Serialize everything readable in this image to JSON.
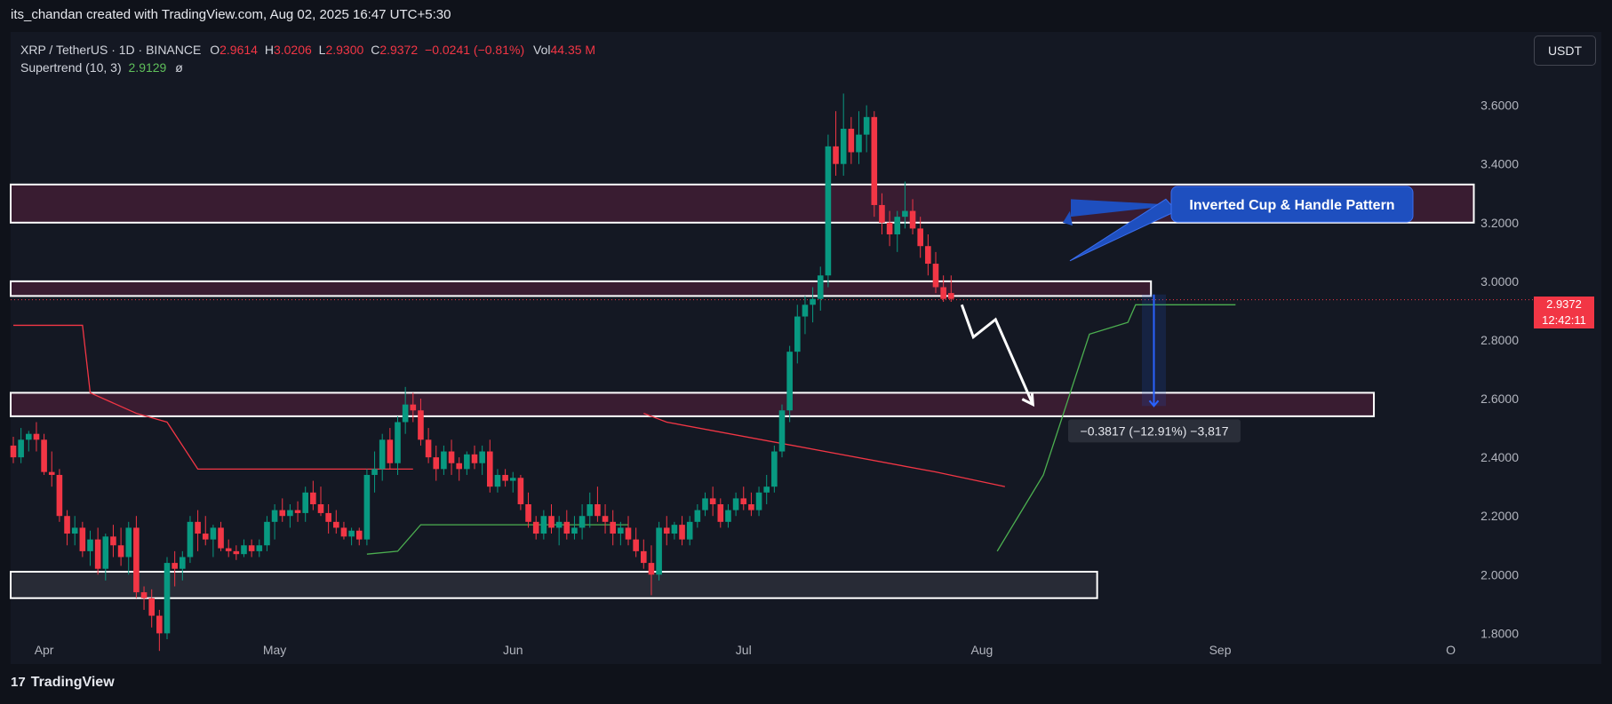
{
  "banner": "its_chandan created with TradingView.com, Aug 02, 2025 16:47 UTC+5:30",
  "legend": {
    "symbol": "XRP / TetherUS · 1D · BINANCE",
    "o_label": "O",
    "o": "2.9614",
    "h_label": "H",
    "h": "3.0206",
    "l_label": "L",
    "l": "2.9300",
    "c_label": "C",
    "c": "2.9372",
    "change": "−0.0241 (−0.81%)",
    "vol_label": "Vol",
    "vol": "44.35 M",
    "indicator": "Supertrend (10, 3)",
    "indicator_value": "2.9129",
    "indicator_icon": "ø"
  },
  "currency_button": "USDT",
  "price_tag": {
    "price": "2.9372",
    "countdown": "12:42:11"
  },
  "footer_brand": "TradingView",
  "colors": {
    "up": "#089981",
    "down": "#f23645",
    "supertrend_up": "#4caf50",
    "supertrend_down": "#f23645",
    "zone_fill": "#3d1d33",
    "annotation": "#1e4fbf"
  },
  "chart_data": {
    "type": "candlestick",
    "ylim": [
      1.78,
      3.85
    ],
    "y_ticks": [
      "3.6000",
      "3.4000",
      "3.2000",
      "3.0000",
      "2.8000",
      "2.6000",
      "2.4000",
      "2.2000",
      "2.0000",
      "1.8000"
    ],
    "x_ticks": [
      "Apr",
      "May",
      "Jun",
      "Jul",
      "Aug",
      "Sep",
      "O"
    ],
    "x_tick_days": [
      4,
      34,
      65,
      95,
      126,
      157,
      187
    ],
    "annotations": {
      "pattern_label": "Inverted Cup & Handle Pattern",
      "measure_label": "−0.3817 (−12.91%) −3,817"
    },
    "zones": [
      {
        "from_day": 0,
        "to_day": 190,
        "y1": 3.33,
        "y2": 3.2
      },
      {
        "from_day": 0,
        "to_day": 148,
        "y1": 3.0,
        "y2": 2.95
      },
      {
        "from_day": 0,
        "to_day": 177,
        "y1": 2.62,
        "y2": 2.54
      },
      {
        "from_day": 0,
        "to_day": 141,
        "y1": 2.01,
        "y2": 1.92
      }
    ],
    "candles": [
      [
        2.44,
        2.47,
        2.38,
        2.4
      ],
      [
        2.4,
        2.5,
        2.38,
        2.46
      ],
      [
        2.46,
        2.49,
        2.42,
        2.48
      ],
      [
        2.48,
        2.52,
        2.42,
        2.46
      ],
      [
        2.46,
        2.48,
        2.34,
        2.35
      ],
      [
        2.35,
        2.42,
        2.3,
        2.34
      ],
      [
        2.34,
        2.36,
        2.18,
        2.2
      ],
      [
        2.2,
        2.22,
        2.1,
        2.14
      ],
      [
        2.14,
        2.2,
        2.1,
        2.16
      ],
      [
        2.16,
        2.18,
        2.06,
        2.08
      ],
      [
        2.08,
        2.15,
        2.03,
        2.12
      ],
      [
        2.12,
        2.16,
        2.0,
        2.02
      ],
      [
        2.02,
        2.14,
        1.98,
        2.13
      ],
      [
        2.13,
        2.17,
        2.06,
        2.1
      ],
      [
        2.1,
        2.16,
        2.03,
        2.06
      ],
      [
        2.06,
        2.18,
        2.0,
        2.16
      ],
      [
        2.16,
        2.2,
        1.92,
        1.94
      ],
      [
        1.94,
        1.96,
        1.88,
        1.92
      ],
      [
        1.92,
        1.95,
        1.82,
        1.86
      ],
      [
        1.86,
        1.88,
        1.74,
        1.8
      ],
      [
        1.8,
        2.06,
        1.78,
        2.04
      ],
      [
        2.04,
        2.08,
        1.96,
        2.02
      ],
      [
        2.02,
        2.08,
        1.98,
        2.06
      ],
      [
        2.06,
        2.2,
        2.04,
        2.18
      ],
      [
        2.18,
        2.22,
        2.08,
        2.14
      ],
      [
        2.14,
        2.2,
        2.1,
        2.12
      ],
      [
        2.12,
        2.17,
        2.06,
        2.16
      ],
      [
        2.16,
        2.18,
        2.08,
        2.09
      ],
      [
        2.09,
        2.12,
        2.06,
        2.08
      ],
      [
        2.08,
        2.1,
        2.05,
        2.07
      ],
      [
        2.07,
        2.12,
        2.06,
        2.1
      ],
      [
        2.1,
        2.12,
        2.06,
        2.08
      ],
      [
        2.08,
        2.12,
        2.06,
        2.1
      ],
      [
        2.1,
        2.2,
        2.08,
        2.18
      ],
      [
        2.18,
        2.24,
        2.12,
        2.22
      ],
      [
        2.22,
        2.26,
        2.18,
        2.2
      ],
      [
        2.2,
        2.24,
        2.16,
        2.22
      ],
      [
        2.22,
        2.25,
        2.18,
        2.21
      ],
      [
        2.21,
        2.3,
        2.18,
        2.28
      ],
      [
        2.28,
        2.32,
        2.22,
        2.24
      ],
      [
        2.24,
        2.3,
        2.2,
        2.21
      ],
      [
        2.21,
        2.24,
        2.14,
        2.18
      ],
      [
        2.18,
        2.22,
        2.14,
        2.16
      ],
      [
        2.16,
        2.18,
        2.12,
        2.13
      ],
      [
        2.13,
        2.16,
        2.1,
        2.15
      ],
      [
        2.15,
        2.16,
        2.1,
        2.12
      ],
      [
        2.12,
        2.36,
        2.1,
        2.34
      ],
      [
        2.34,
        2.42,
        2.28,
        2.36
      ],
      [
        2.36,
        2.48,
        2.32,
        2.46
      ],
      [
        2.46,
        2.5,
        2.36,
        2.38
      ],
      [
        2.38,
        2.54,
        2.34,
        2.52
      ],
      [
        2.52,
        2.64,
        2.48,
        2.58
      ],
      [
        2.58,
        2.62,
        2.52,
        2.56
      ],
      [
        2.56,
        2.6,
        2.44,
        2.46
      ],
      [
        2.46,
        2.5,
        2.38,
        2.4
      ],
      [
        2.4,
        2.44,
        2.32,
        2.36
      ],
      [
        2.36,
        2.44,
        2.34,
        2.42
      ],
      [
        2.42,
        2.46,
        2.34,
        2.38
      ],
      [
        2.38,
        2.4,
        2.32,
        2.36
      ],
      [
        2.36,
        2.42,
        2.34,
        2.41
      ],
      [
        2.41,
        2.44,
        2.36,
        2.38
      ],
      [
        2.38,
        2.44,
        2.34,
        2.42
      ],
      [
        2.42,
        2.46,
        2.28,
        2.3
      ],
      [
        2.3,
        2.36,
        2.28,
        2.34
      ],
      [
        2.34,
        2.36,
        2.3,
        2.32
      ],
      [
        2.32,
        2.35,
        2.28,
        2.33
      ],
      [
        2.33,
        2.34,
        2.22,
        2.24
      ],
      [
        2.24,
        2.28,
        2.16,
        2.18
      ],
      [
        2.18,
        2.2,
        2.12,
        2.14
      ],
      [
        2.14,
        2.22,
        2.12,
        2.2
      ],
      [
        2.2,
        2.24,
        2.14,
        2.16
      ],
      [
        2.16,
        2.2,
        2.1,
        2.18
      ],
      [
        2.18,
        2.22,
        2.12,
        2.14
      ],
      [
        2.14,
        2.2,
        2.12,
        2.16
      ],
      [
        2.16,
        2.24,
        2.12,
        2.2
      ],
      [
        2.2,
        2.28,
        2.16,
        2.24
      ],
      [
        2.24,
        2.3,
        2.18,
        2.2
      ],
      [
        2.2,
        2.24,
        2.14,
        2.18
      ],
      [
        2.18,
        2.22,
        2.1,
        2.14
      ],
      [
        2.14,
        2.18,
        2.1,
        2.16
      ],
      [
        2.16,
        2.2,
        2.1,
        2.12
      ],
      [
        2.12,
        2.16,
        2.06,
        2.08
      ],
      [
        2.08,
        2.12,
        2.02,
        2.04
      ],
      [
        2.04,
        2.1,
        1.93,
        2.0
      ],
      [
        2.0,
        2.18,
        1.98,
        2.16
      ],
      [
        2.16,
        2.2,
        2.1,
        2.14
      ],
      [
        2.14,
        2.18,
        2.12,
        2.17
      ],
      [
        2.17,
        2.2,
        2.1,
        2.12
      ],
      [
        2.12,
        2.2,
        2.1,
        2.18
      ],
      [
        2.18,
        2.24,
        2.16,
        2.22
      ],
      [
        2.22,
        2.28,
        2.2,
        2.26
      ],
      [
        2.26,
        2.3,
        2.2,
        2.24
      ],
      [
        2.24,
        2.26,
        2.16,
        2.18
      ],
      [
        2.18,
        2.24,
        2.16,
        2.22
      ],
      [
        2.22,
        2.28,
        2.2,
        2.26
      ],
      [
        2.26,
        2.3,
        2.22,
        2.24
      ],
      [
        2.24,
        2.28,
        2.2,
        2.22
      ],
      [
        2.22,
        2.3,
        2.2,
        2.28
      ],
      [
        2.28,
        2.34,
        2.24,
        2.3
      ],
      [
        2.3,
        2.44,
        2.28,
        2.42
      ],
      [
        2.42,
        2.58,
        2.4,
        2.56
      ],
      [
        2.56,
        2.78,
        2.52,
        2.76
      ],
      [
        2.76,
        2.92,
        2.72,
        2.88
      ],
      [
        2.88,
        2.95,
        2.82,
        2.92
      ],
      [
        2.92,
        2.98,
        2.86,
        2.94
      ],
      [
        2.94,
        3.05,
        2.9,
        3.02
      ],
      [
        3.02,
        3.5,
        2.98,
        3.46
      ],
      [
        3.46,
        3.58,
        3.36,
        3.4
      ],
      [
        3.4,
        3.64,
        3.36,
        3.52
      ],
      [
        3.52,
        3.56,
        3.4,
        3.44
      ],
      [
        3.44,
        3.58,
        3.4,
        3.5
      ],
      [
        3.5,
        3.6,
        3.44,
        3.56
      ],
      [
        3.56,
        3.58,
        3.22,
        3.26
      ],
      [
        3.26,
        3.3,
        3.16,
        3.2
      ],
      [
        3.2,
        3.24,
        3.12,
        3.16
      ],
      [
        3.16,
        3.24,
        3.1,
        3.22
      ],
      [
        3.22,
        3.34,
        3.18,
        3.24
      ],
      [
        3.24,
        3.28,
        3.16,
        3.18
      ],
      [
        3.18,
        3.22,
        3.08,
        3.12
      ],
      [
        3.12,
        3.16,
        3.02,
        3.06
      ],
      [
        3.06,
        3.1,
        2.96,
        2.98
      ],
      [
        2.98,
        3.02,
        2.93,
        2.94
      ],
      [
        2.96,
        3.02,
        2.93,
        2.94
      ]
    ],
    "supertrend_down": [
      {
        "day": 0,
        "y": 2.85
      },
      {
        "day": 9,
        "y": 2.85
      },
      {
        "day": 10,
        "y": 2.62
      },
      {
        "day": 16,
        "y": 2.55
      },
      {
        "day": 20,
        "y": 2.52
      },
      {
        "day": 24,
        "y": 2.36
      },
      {
        "day": 52,
        "y": 2.36
      }
    ],
    "supertrend_down2": [
      {
        "day": 82,
        "y": 2.55
      },
      {
        "day": 85,
        "y": 2.52
      },
      {
        "day": 120,
        "y": 2.35
      },
      {
        "day": 129,
        "y": 2.3
      }
    ],
    "supertrend_up": [
      {
        "day": 46,
        "y": 2.07
      },
      {
        "day": 50,
        "y": 2.08
      },
      {
        "day": 53,
        "y": 2.17
      },
      {
        "day": 80,
        "y": 2.17
      }
    ],
    "supertrend_up2": [
      {
        "day": 128,
        "y": 2.08
      },
      {
        "day": 134,
        "y": 2.34
      },
      {
        "day": 140,
        "y": 2.82
      },
      {
        "day": 145,
        "y": 2.86
      },
      {
        "day": 146,
        "y": 2.92
      },
      {
        "day": 159,
        "y": 2.92
      }
    ],
    "last_price": 2.9372,
    "measure": {
      "from_y": 2.955,
      "to_y": 2.575
    }
  }
}
